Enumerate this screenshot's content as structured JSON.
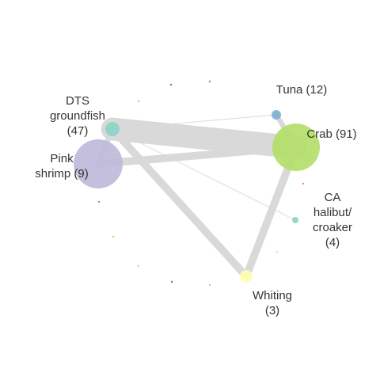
{
  "nodes": [
    {
      "id": "dts",
      "lines": [
        "DTS",
        "groundfish",
        "(47)"
      ],
      "color": "#8dd3c7"
    },
    {
      "id": "pink",
      "lines": [
        "Pink",
        "shrimp (9)"
      ],
      "color": "#bebada"
    },
    {
      "id": "tuna",
      "lines": [
        "Tuna (12)"
      ],
      "color": "#80b1d3"
    },
    {
      "id": "crab",
      "lines": [
        "Crab (91)"
      ],
      "color": "#b3de69"
    },
    {
      "id": "ca",
      "lines": [
        "CA",
        "halibut/",
        "croaker",
        "(4)"
      ],
      "color": "#8dd3c7"
    },
    {
      "id": "whiting",
      "lines": [
        "Whiting",
        "(3)"
      ],
      "color": "#ffffb3"
    }
  ],
  "edge_color": "#d9d9d9",
  "edges": [
    {
      "from": "dts",
      "to": "crab",
      "weight": 9
    },
    {
      "from": "pink",
      "to": "crab",
      "weight": 3
    },
    {
      "from": "dts",
      "to": "whiting",
      "weight": 3
    },
    {
      "from": "crab",
      "to": "whiting",
      "weight": 3
    },
    {
      "from": "dts",
      "to": "pink",
      "weight": 2
    },
    {
      "from": "tuna",
      "to": "crab",
      "weight": 2
    },
    {
      "from": "dts",
      "to": "tuna",
      "weight": 0.3
    },
    {
      "from": "dts",
      "to": "ca",
      "weight": 0.3
    }
  ]
}
